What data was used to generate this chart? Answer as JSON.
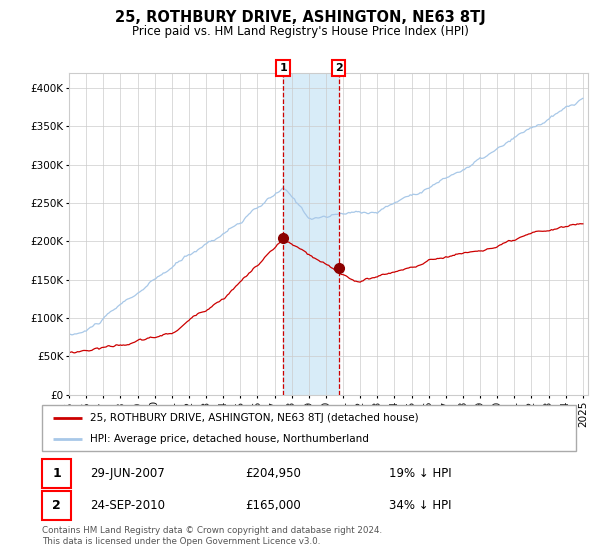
{
  "title": "25, ROTHBURY DRIVE, ASHINGTON, NE63 8TJ",
  "subtitle": "Price paid vs. HM Land Registry's House Price Index (HPI)",
  "legend_line1": "25, ROTHBURY DRIVE, ASHINGTON, NE63 8TJ (detached house)",
  "legend_line2": "HPI: Average price, detached house, Northumberland",
  "transaction1_date": "29-JUN-2007",
  "transaction1_price": 204950,
  "transaction1_label": "19% ↓ HPI",
  "transaction2_date": "24-SEP-2010",
  "transaction2_price": 165000,
  "transaction2_label": "34% ↓ HPI",
  "footnote": "Contains HM Land Registry data © Crown copyright and database right 2024.\nThis data is licensed under the Open Government Licence v3.0.",
  "hpi_color": "#a8c8e8",
  "price_color": "#cc0000",
  "marker_color": "#8b0000",
  "vline_color": "#cc0000",
  "shade_color": "#d8ecf8",
  "ylim": [
    0,
    420000
  ],
  "yticks": [
    0,
    50000,
    100000,
    150000,
    200000,
    250000,
    300000,
    350000,
    400000
  ],
  "background_color": "#ffffff",
  "grid_color": "#cccccc",
  "t1_year": 2007.5,
  "t2_year": 2010.75
}
